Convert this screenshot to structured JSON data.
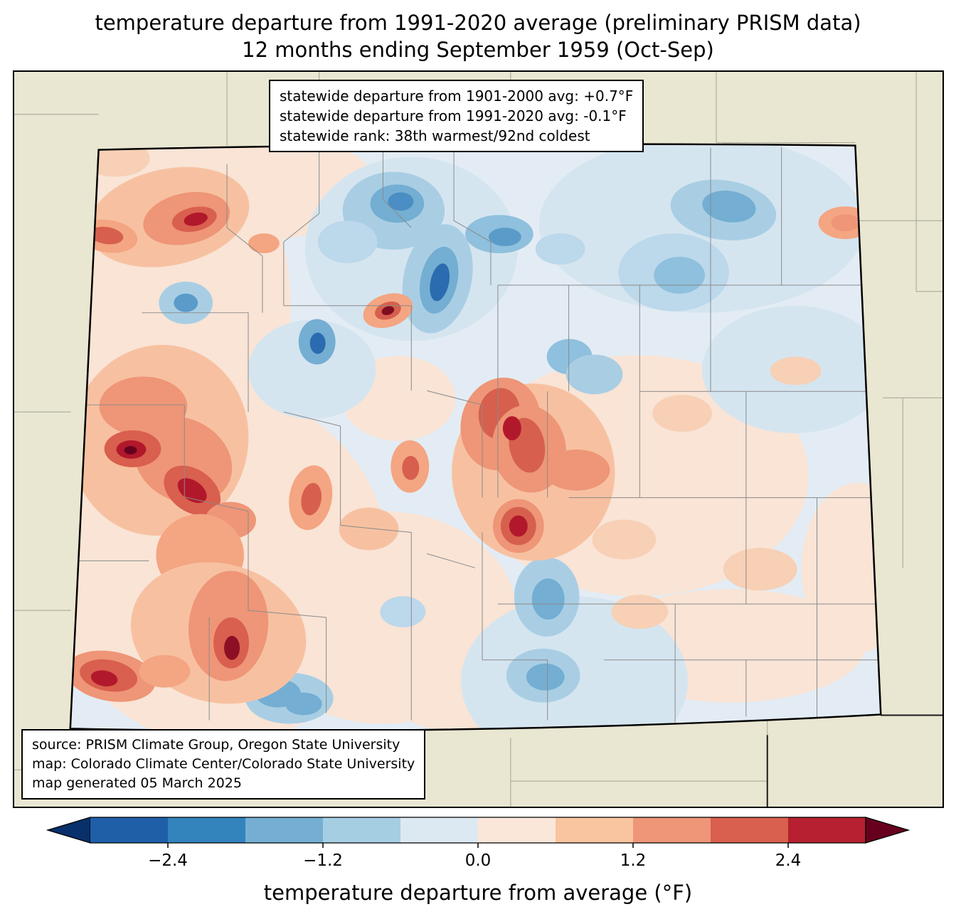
{
  "title": {
    "line1": "temperature departure from 1991-2020 average (preliminary PRISM data)",
    "line2": "12 months ending September 1959 (Oct-Sep)"
  },
  "stats_box": {
    "lines": [
      "statewide departure from 1901-2000 avg: +0.7°F",
      "statewide departure from 1991-2020 avg: -0.1°F",
      "statewide rank: 38th warmest/92nd coldest"
    ]
  },
  "source_box": {
    "lines": [
      "source: PRISM Climate Group, Oregon State University",
      "map: Colorado Climate Center/Colorado State University",
      "map generated 05 March 2025"
    ]
  },
  "colorbar": {
    "label": "temperature departure from average (°F)",
    "tick_labels": [
      "−2.4",
      "−1.2",
      "0.0",
      "1.2",
      "2.4"
    ],
    "tick_values": [
      -2.4,
      -1.2,
      0.0,
      1.2,
      2.4
    ],
    "range": [
      -3.0,
      3.0
    ],
    "bin_width": 0.6,
    "under_color": "#08306b",
    "over_color": "#67001f",
    "bin_colors": [
      "#1f5fa8",
      "#3383bd",
      "#74afd3",
      "#a6cee3",
      "#dde9f2",
      "#fbe7da",
      "#f9c4a0",
      "#ee9677",
      "#d95f4e",
      "#b62030"
    ],
    "units": "°F"
  },
  "map": {
    "region_name": "Colorado",
    "outside_fill": "#e9e6d1",
    "state_base_fill": "#e3ecf4",
    "state_border_color": "#000000",
    "county_line_color": "#8a8a8a"
  }
}
